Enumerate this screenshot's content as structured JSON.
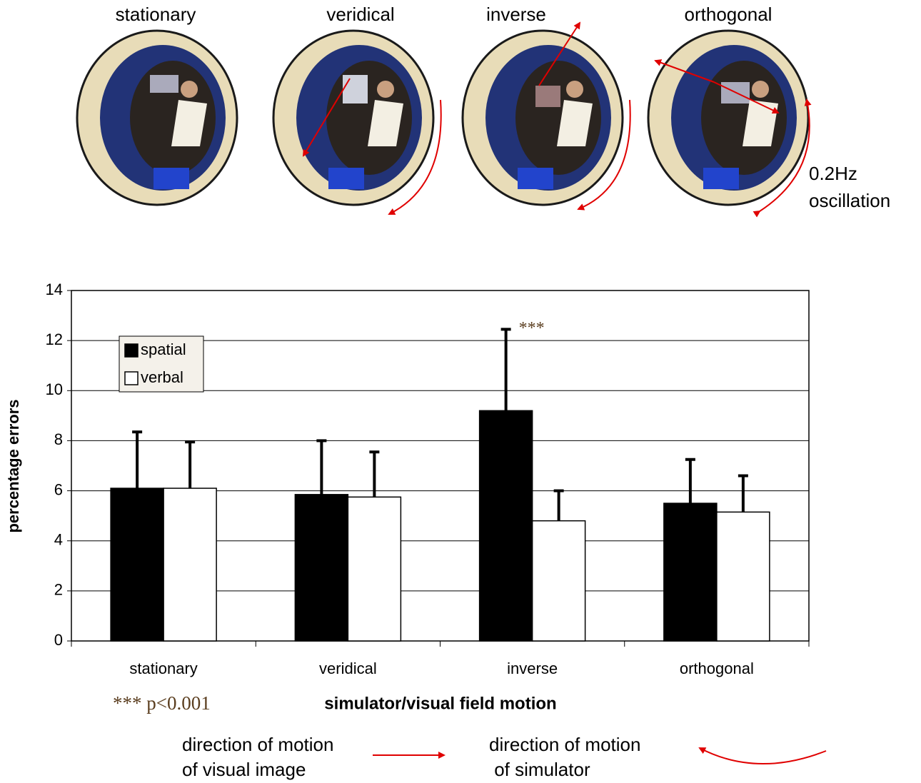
{
  "chart_data": {
    "type": "bar",
    "panel_labels": [
      "stationary",
      "veridical",
      "inverse",
      "orthogonal"
    ],
    "oscillation_label": [
      "0.2Hz",
      "oscillation"
    ],
    "categories": [
      "stationary",
      "veridical",
      "inverse",
      "orthogonal"
    ],
    "series": [
      {
        "name": "spatial",
        "color": "#000000",
        "values": [
          6.1,
          5.85,
          9.2,
          5.5
        ],
        "errors": [
          2.25,
          2.15,
          3.25,
          1.75
        ]
      },
      {
        "name": "verbal",
        "color": "#ffffff",
        "values": [
          6.1,
          5.75,
          4.8,
          5.15
        ],
        "errors": [
          1.85,
          1.8,
          1.2,
          1.45
        ]
      }
    ],
    "ylim": [
      0,
      14
    ],
    "yticks": [
      0,
      2,
      4,
      6,
      8,
      10,
      12,
      14
    ],
    "grid": true,
    "legend": "upper left",
    "xlabel": "simulator/visual field motion",
    "ylabel": "percentage errors",
    "significance": "***",
    "significance_note": "*** p<0.001",
    "key_visual": [
      "direction of motion",
      "of visual image"
    ],
    "key_simulator": [
      "direction of motion",
      " of simulator"
    ]
  }
}
